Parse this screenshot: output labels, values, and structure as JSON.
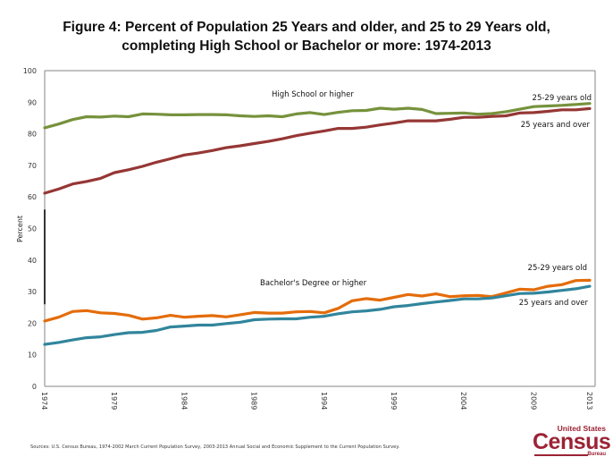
{
  "title_line1": "Figure 4: Percent of Population 25 Years and older, and 25 to 29 Years old,",
  "title_line2": "completing High School or Bachelor or more: 1974-2013",
  "source_note": "Sources:  U.S. Census Bureau,  1974-2002 March Current Population Survey,  2003-2013 Annual Social and Economic Supplement to the Current Population Survey.",
  "logo": {
    "line1": "United States",
    "line2": "Census",
    "line3": "Bureau"
  },
  "colors": {
    "hs_25_29": "#76923c",
    "hs_25_over": "#953735",
    "ba_25_29": "#e46c0a",
    "ba_25_over": "#31859c",
    "axis": "#868686"
  },
  "chart_data": {
    "type": "line",
    "title": "Figure 4: Percent of Population 25 Years and older, and 25 to 29 Years old, completing High School or Bachelor or more: 1974-2013",
    "xlabel": "",
    "ylabel": "Percent",
    "ylim": [
      0,
      100
    ],
    "yticks": [
      0,
      10,
      20,
      30,
      40,
      50,
      60,
      70,
      80,
      90,
      100
    ],
    "xticks": [
      "1974",
      "1979",
      "1984",
      "1989",
      "1994",
      "1999",
      "2004",
      "2009",
      "2013"
    ],
    "grid": false,
    "x": [
      1974,
      1975,
      1976,
      1977,
      1978,
      1979,
      1980,
      1981,
      1982,
      1983,
      1984,
      1985,
      1986,
      1987,
      1988,
      1989,
      1990,
      1991,
      1992,
      1993,
      1994,
      1995,
      1996,
      1997,
      1998,
      1999,
      2000,
      2001,
      2002,
      2003,
      2004,
      2005,
      2006,
      2007,
      2008,
      2009,
      2010,
      2011,
      2012,
      2013
    ],
    "series": [
      {
        "name": "High School or higher, 25-29 years old",
        "key": "hs_25_29",
        "values": [
          81.9,
          83.1,
          84.5,
          85.4,
          85.3,
          85.6,
          85.4,
          86.3,
          86.2,
          86.0,
          86.0,
          86.1,
          86.1,
          86.0,
          85.7,
          85.5,
          85.7,
          85.4,
          86.3,
          86.7,
          86.1,
          86.8,
          87.3,
          87.4,
          88.1,
          87.8,
          88.1,
          87.7,
          86.4,
          86.5,
          86.6,
          86.2,
          86.4,
          87.0,
          87.8,
          88.6,
          88.8,
          89.0,
          89.3,
          89.6
        ]
      },
      {
        "name": "High School or higher, 25 years and over",
        "key": "hs_25_over",
        "values": [
          61.2,
          62.5,
          64.1,
          64.9,
          65.9,
          67.7,
          68.6,
          69.7,
          71.0,
          72.1,
          73.3,
          73.9,
          74.7,
          75.6,
          76.2,
          76.9,
          77.6,
          78.4,
          79.4,
          80.2,
          80.9,
          81.7,
          81.7,
          82.1,
          82.8,
          83.4,
          84.1,
          84.1,
          84.1,
          84.6,
          85.2,
          85.2,
          85.5,
          85.7,
          86.6,
          86.7,
          87.1,
          87.6,
          87.6,
          88.0
        ]
      },
      {
        "name": "Bachelor's Degree or higher, 25-29 years old",
        "key": "ba_25_29",
        "values": [
          20.7,
          21.9,
          23.7,
          24.0,
          23.3,
          23.1,
          22.5,
          21.3,
          21.7,
          22.5,
          21.9,
          22.2,
          22.4,
          22.0,
          22.7,
          23.4,
          23.2,
          23.2,
          23.6,
          23.7,
          23.3,
          24.7,
          27.1,
          27.8,
          27.3,
          28.2,
          29.1,
          28.6,
          29.3,
          28.4,
          28.7,
          28.8,
          28.4,
          29.6,
          30.8,
          30.6,
          31.7,
          32.2,
          33.5,
          33.6
        ]
      },
      {
        "name": "Bachelor's Degree or higher, 25 years and over",
        "key": "ba_25_over",
        "values": [
          13.3,
          13.9,
          14.7,
          15.4,
          15.7,
          16.4,
          17.0,
          17.1,
          17.7,
          18.8,
          19.1,
          19.4,
          19.4,
          19.9,
          20.3,
          21.1,
          21.3,
          21.4,
          21.4,
          21.9,
          22.2,
          23.0,
          23.6,
          23.9,
          24.4,
          25.2,
          25.6,
          26.2,
          26.7,
          27.2,
          27.7,
          27.7,
          28.0,
          28.7,
          29.4,
          29.5,
          29.9,
          30.4,
          30.9,
          31.7
        ]
      }
    ],
    "annotations": [
      {
        "text": "High School or higher",
        "group": "high_school"
      },
      {
        "text": "25-29 years old",
        "series": "hs_25_29"
      },
      {
        "text": "25 years and over",
        "series": "hs_25_over"
      },
      {
        "text": "Bachelor's Degree or higher",
        "group": "bachelor"
      },
      {
        "text": "25-29 years old",
        "series": "ba_25_29"
      },
      {
        "text": "25 years and over",
        "series": "ba_25_over"
      }
    ],
    "legend": "none (inline annotations)"
  }
}
